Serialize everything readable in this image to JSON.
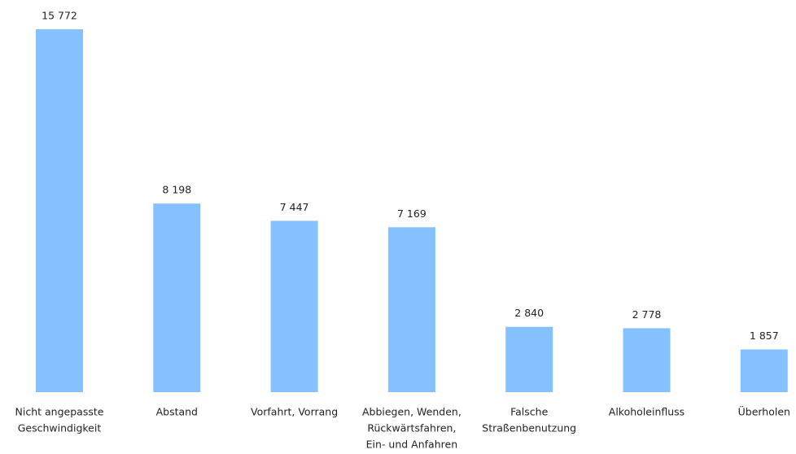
{
  "chart_data": {
    "type": "bar",
    "categories": [
      [
        "Nicht angepasste",
        "Geschwindigkeit"
      ],
      [
        "Abstand"
      ],
      [
        "Vorfahrt, Vorrang"
      ],
      [
        "Abbiegen, Wenden,",
        "Rückwärtsfahren,",
        "Ein- und Anfahren"
      ],
      [
        "Falsche",
        "Straßenbenutzung"
      ],
      [
        "Alkoholeinfluss"
      ],
      [
        "Überholen"
      ]
    ],
    "values": [
      15772,
      8198,
      7447,
      7169,
      2840,
      2778,
      1857
    ],
    "value_labels": [
      "15 772",
      "8 198",
      "7 447",
      "7 169",
      "2 840",
      "2 778",
      "1 857"
    ],
    "color": "#86c1ff"
  }
}
